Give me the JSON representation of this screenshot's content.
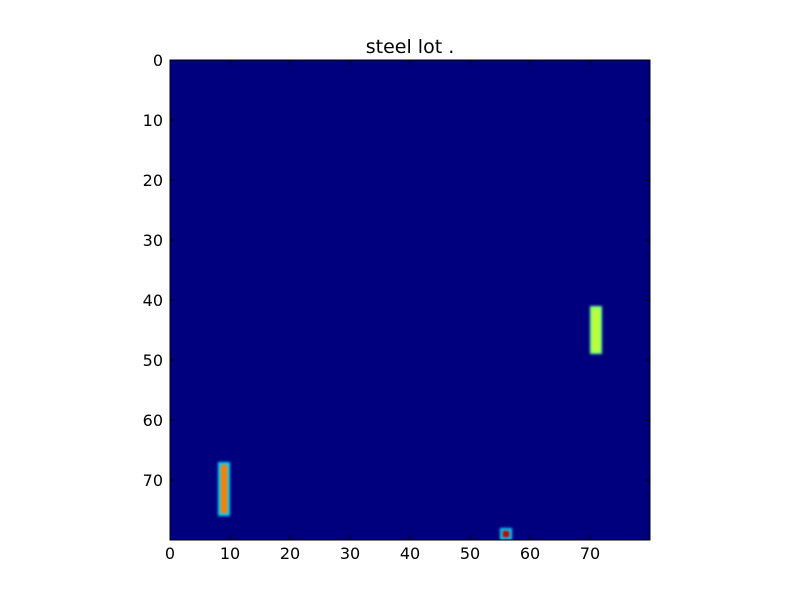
{
  "chart_data": {
    "type": "heatmap",
    "title": "steel lot .",
    "xlabel": "",
    "ylabel": "",
    "colormap": "jet",
    "background_color": "#00007f",
    "xlim": [
      0,
      80
    ],
    "ylim": [
      80,
      0
    ],
    "grid": false,
    "x_ticks": [
      0,
      10,
      20,
      30,
      40,
      50,
      60,
      70
    ],
    "y_ticks": [
      0,
      10,
      20,
      30,
      40,
      50,
      60,
      70
    ],
    "x_tick_labels": [
      "0",
      "10",
      "20",
      "30",
      "40",
      "50",
      "60",
      "70"
    ],
    "y_tick_labels": [
      "0",
      "10",
      "20",
      "30",
      "40",
      "50",
      "60",
      "70"
    ],
    "blobs": [
      {
        "x_range": [
          8,
          10
        ],
        "y_range": [
          67,
          76
        ],
        "edge_color": "#00d4ff",
        "core_color": "#ff7f00"
      },
      {
        "x_range": [
          70,
          72
        ],
        "y_range": [
          41,
          49
        ],
        "edge_color": "#7fff7f",
        "core_color": "#c0ff33"
      },
      {
        "x_range": [
          55,
          57
        ],
        "y_range": [
          78,
          80
        ],
        "edge_color": "#00d4ff",
        "core_color": "#c00000"
      }
    ]
  }
}
